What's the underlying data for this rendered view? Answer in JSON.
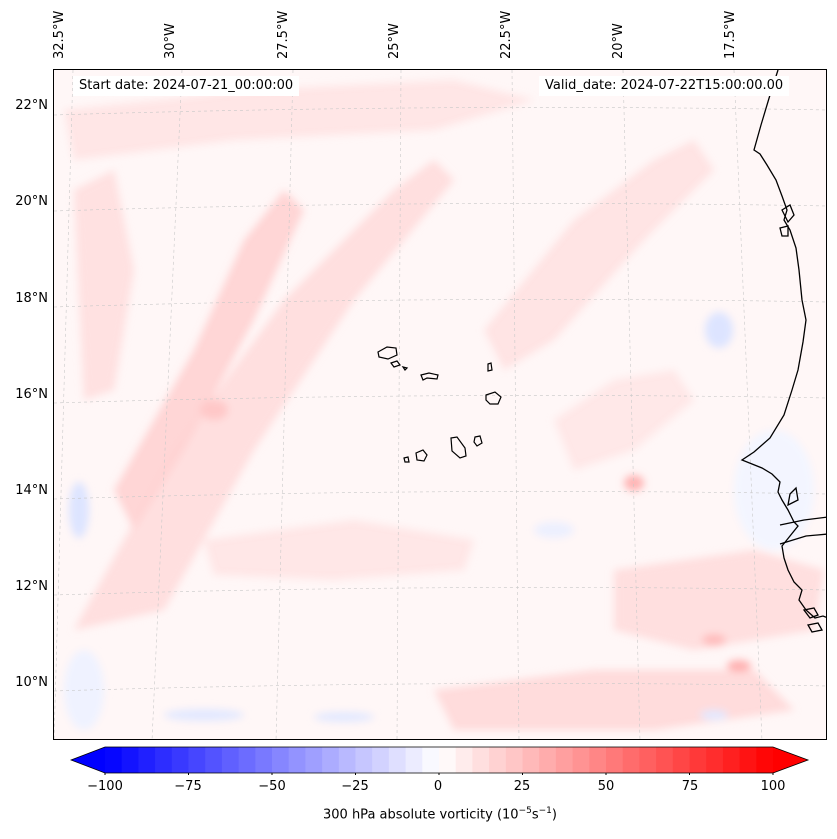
{
  "map": {
    "start_date": "Start date: 2024-07-21_00:00:00",
    "valid_date": "Valid_date: 2024-07-22T15:00:00.00",
    "lon_labels": [
      "32.5°W",
      "30°W",
      "27.5°W",
      "25°W",
      "22.5°W",
      "20°W",
      "17.5°W"
    ],
    "lat_labels": [
      "22°N",
      "20°N",
      "18°N",
      "16°N",
      "14°N",
      "12°N",
      "10°N"
    ],
    "field_name": "300 hPa absolute vorticity",
    "colors": {
      "negative_max": "#0000ff",
      "zero": "#ffffff",
      "positive_max": "#ff0000",
      "background": "#fff7f7",
      "coastline": "#000000"
    }
  },
  "colorbar": {
    "min": -100,
    "max": 100,
    "ticks": [
      "−100",
      "−75",
      "−50",
      "−25",
      "0",
      "25",
      "50",
      "75",
      "100"
    ],
    "label_prefix": "300 hPa absolute vorticity (10",
    "label_exp1": "−5",
    "label_mid": "s",
    "label_exp2": "−1",
    "label_suffix": ")"
  }
}
